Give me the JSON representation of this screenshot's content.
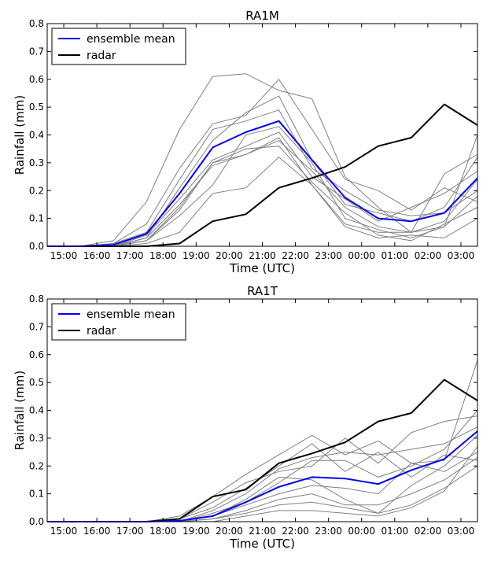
{
  "chart_data": [
    {
      "type": "line",
      "title": "RA1M",
      "xlabel": "Time (UTC)",
      "ylabel": "Rainfall (mm)",
      "ylim": [
        0,
        0.8
      ],
      "yticks": [
        "0.0",
        "0.1",
        "0.2",
        "0.3",
        "0.4",
        "0.5",
        "0.6",
        "0.7",
        "0.8"
      ],
      "xtick_labels": [
        "15:00",
        "16:00",
        "17:00",
        "18:00",
        "19:00",
        "20:00",
        "21:00",
        "22:00",
        "23:00",
        "00:00",
        "01:00",
        "02:00",
        "03:00"
      ],
      "x": [
        "14:30",
        "15:30",
        "16:30",
        "17:30",
        "18:30",
        "19:30",
        "20:30",
        "21:30",
        "22:30",
        "23:30",
        "00:30",
        "01:30",
        "02:30",
        "03:30"
      ],
      "legend_position": "top-left",
      "grid": false,
      "series": [
        {
          "name": "ensemble mean",
          "color": "#0000ff",
          "values": [
            0.0,
            0.0,
            0.005,
            0.045,
            0.19,
            0.355,
            0.41,
            0.45,
            0.31,
            0.175,
            0.1,
            0.09,
            0.12,
            0.245
          ]
        },
        {
          "name": "radar",
          "color": "#000000",
          "values": [
            0.0,
            0.0,
            0.0,
            0.0,
            0.01,
            0.09,
            0.115,
            0.21,
            0.245,
            0.285,
            0.36,
            0.39,
            0.51,
            0.435
          ]
        }
      ],
      "members": {
        "color": "#808080",
        "values": [
          [
            0.0,
            0.0,
            0.02,
            0.16,
            0.42,
            0.61,
            0.62,
            0.56,
            0.53,
            0.25,
            0.14,
            0.05,
            0.07,
            0.4
          ],
          [
            0.0,
            0.0,
            0.01,
            0.08,
            0.28,
            0.44,
            0.47,
            0.6,
            0.42,
            0.24,
            0.2,
            0.13,
            0.21,
            0.16
          ],
          [
            0.0,
            0.0,
            0.0,
            0.03,
            0.21,
            0.38,
            0.48,
            0.54,
            0.31,
            0.15,
            0.12,
            0.09,
            0.14,
            0.32
          ],
          [
            0.0,
            0.0,
            0.01,
            0.05,
            0.24,
            0.42,
            0.45,
            0.49,
            0.28,
            0.2,
            0.13,
            0.11,
            0.12,
            0.2
          ],
          [
            0.0,
            0.0,
            0.0,
            0.02,
            0.13,
            0.3,
            0.33,
            0.38,
            0.27,
            0.14,
            0.07,
            0.05,
            0.09,
            0.24
          ],
          [
            0.0,
            0.0,
            0.0,
            0.03,
            0.15,
            0.29,
            0.33,
            0.39,
            0.22,
            0.08,
            0.05,
            0.05,
            0.26,
            0.33
          ],
          [
            0.0,
            0.0,
            0.0,
            0.01,
            0.05,
            0.19,
            0.21,
            0.32,
            0.22,
            0.07,
            0.03,
            0.04,
            0.03,
            0.1
          ],
          [
            0.0,
            0.0,
            0.0,
            0.02,
            0.11,
            0.22,
            0.4,
            0.43,
            0.3,
            0.1,
            0.06,
            0.03,
            0.07,
            0.18
          ],
          [
            0.0,
            0.0,
            0.0,
            0.04,
            0.17,
            0.31,
            0.36,
            0.41,
            0.25,
            0.17,
            0.09,
            0.14,
            0.19,
            0.27
          ],
          [
            0.0,
            0.0,
            0.0,
            0.02,
            0.14,
            0.3,
            0.35,
            0.36,
            0.23,
            0.12,
            0.04,
            0.02,
            0.08,
            0.14
          ]
        ]
      }
    },
    {
      "type": "line",
      "title": "RA1T",
      "xlabel": "Time (UTC)",
      "ylabel": "Rainfall (mm)",
      "ylim": [
        0,
        0.8
      ],
      "yticks": [
        "0.0",
        "0.1",
        "0.2",
        "0.3",
        "0.4",
        "0.5",
        "0.6",
        "0.7",
        "0.8"
      ],
      "xtick_labels": [
        "15:00",
        "16:00",
        "17:00",
        "18:00",
        "19:00",
        "20:00",
        "21:00",
        "22:00",
        "23:00",
        "00:00",
        "01:00",
        "02:00",
        "03:00"
      ],
      "x": [
        "14:30",
        "15:30",
        "16:30",
        "17:30",
        "18:30",
        "19:30",
        "20:30",
        "21:30",
        "22:30",
        "23:30",
        "00:30",
        "01:30",
        "02:30",
        "03:30"
      ],
      "legend_position": "top-left",
      "grid": false,
      "series": [
        {
          "name": "ensemble mean",
          "color": "#0000ff",
          "values": [
            0.0,
            0.0,
            0.0,
            0.0,
            0.003,
            0.02,
            0.07,
            0.125,
            0.16,
            0.155,
            0.135,
            0.185,
            0.225,
            0.325
          ]
        },
        {
          "name": "radar",
          "color": "#000000",
          "values": [
            0.0,
            0.0,
            0.0,
            0.0,
            0.01,
            0.09,
            0.115,
            0.21,
            0.245,
            0.285,
            0.36,
            0.39,
            0.51,
            0.435
          ]
        }
      ],
      "members": {
        "color": "#808080",
        "values": [
          [
            0.0,
            0.0,
            0.0,
            0.0,
            0.02,
            0.09,
            0.17,
            0.24,
            0.31,
            0.24,
            0.29,
            0.21,
            0.22,
            0.58
          ],
          [
            0.0,
            0.0,
            0.0,
            0.0,
            0.01,
            0.07,
            0.14,
            0.18,
            0.2,
            0.3,
            0.21,
            0.32,
            0.36,
            0.38
          ],
          [
            0.0,
            0.0,
            0.0,
            0.0,
            0.0,
            0.04,
            0.1,
            0.19,
            0.23,
            0.25,
            0.24,
            0.26,
            0.28,
            0.34
          ],
          [
            0.0,
            0.0,
            0.0,
            0.0,
            0.0,
            0.03,
            0.07,
            0.14,
            0.22,
            0.22,
            0.16,
            0.2,
            0.26,
            0.4
          ],
          [
            0.0,
            0.0,
            0.0,
            0.0,
            0.0,
            0.02,
            0.06,
            0.1,
            0.13,
            0.12,
            0.1,
            0.21,
            0.18,
            0.25
          ],
          [
            0.0,
            0.0,
            0.0,
            0.0,
            0.0,
            0.01,
            0.04,
            0.08,
            0.1,
            0.06,
            0.06,
            0.1,
            0.15,
            0.23
          ],
          [
            0.0,
            0.0,
            0.0,
            0.0,
            0.0,
            0.01,
            0.03,
            0.06,
            0.07,
            0.05,
            0.03,
            0.06,
            0.12,
            0.2
          ],
          [
            0.0,
            0.0,
            0.0,
            0.0,
            0.0,
            0.0,
            0.02,
            0.04,
            0.04,
            0.03,
            0.02,
            0.05,
            0.11,
            0.27
          ],
          [
            0.0,
            0.0,
            0.0,
            0.0,
            0.0,
            0.02,
            0.08,
            0.16,
            0.15,
            0.08,
            0.03,
            0.13,
            0.2,
            0.31
          ],
          [
            0.0,
            0.0,
            0.0,
            0.0,
            0.01,
            0.05,
            0.12,
            0.2,
            0.28,
            0.18,
            0.25,
            0.16,
            0.24,
            0.22
          ]
        ]
      }
    }
  ]
}
